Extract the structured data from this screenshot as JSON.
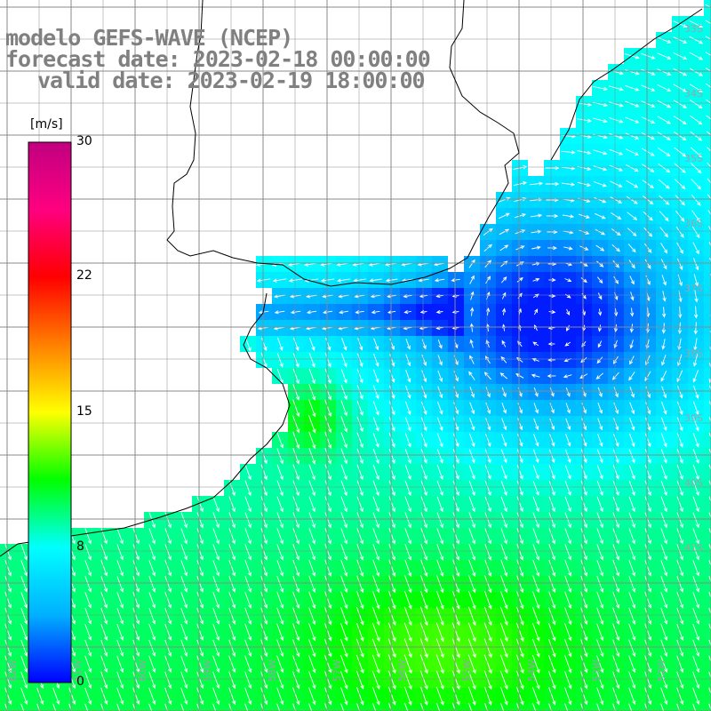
{
  "title": {
    "line1": "modelo GEFS-WAVE (NCEP)",
    "line2": "forecast date: 2023-02-18 00:00:00",
    "line3": "valid date: 2023-02-19 18:00:00"
  },
  "colorbar": {
    "unit": "[m/s]",
    "ticks": [
      "30",
      "22",
      "15",
      "8",
      "0"
    ],
    "min": 0,
    "max": 30,
    "colors": [
      "#0000ff",
      "#00b0ff",
      "#00ffff",
      "#00ff00",
      "#ffff00",
      "#ff8000",
      "#ff0000",
      "#ff0080",
      "#c00080"
    ]
  },
  "lat_labels": [
    "33S",
    "34S",
    "35S",
    "36S",
    "37S",
    "38S",
    "39S",
    "40S",
    "41S"
  ],
  "lon_labels": [
    "62W",
    "61W",
    "60W",
    "59W",
    "58W",
    "57W",
    "56W",
    "55W",
    "54W",
    "53W",
    "52W"
  ],
  "field": {
    "variable": "wind speed",
    "shading": "wind speed",
    "vectors": "wind direction"
  }
}
